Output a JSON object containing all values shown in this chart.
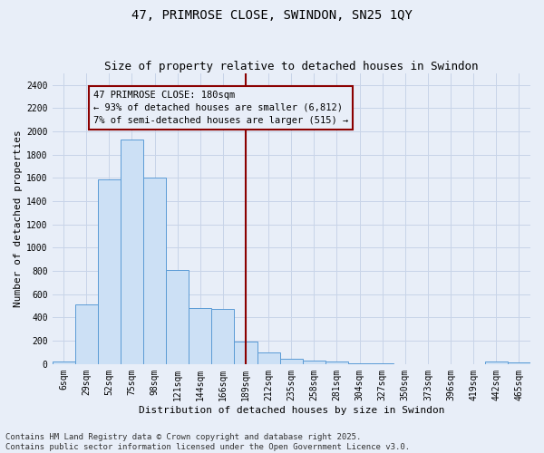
{
  "title": "47, PRIMROSE CLOSE, SWINDON, SN25 1QY",
  "subtitle": "Size of property relative to detached houses in Swindon",
  "xlabel": "Distribution of detached houses by size in Swindon",
  "ylabel": "Number of detached properties",
  "categories": [
    "6sqm",
    "29sqm",
    "52sqm",
    "75sqm",
    "98sqm",
    "121sqm",
    "144sqm",
    "166sqm",
    "189sqm",
    "212sqm",
    "235sqm",
    "258sqm",
    "281sqm",
    "304sqm",
    "327sqm",
    "350sqm",
    "373sqm",
    "396sqm",
    "419sqm",
    "442sqm",
    "465sqm"
  ],
  "values": [
    25,
    510,
    1590,
    1930,
    1600,
    810,
    480,
    470,
    195,
    100,
    45,
    30,
    20,
    10,
    5,
    0,
    0,
    0,
    0,
    20,
    15
  ],
  "bar_color": "#cce0f5",
  "bar_edge_color": "#5b9bd5",
  "vline_color": "#8b0000",
  "vline_index": 8.0,
  "annotation_title": "47 PRIMROSE CLOSE: 180sqm",
  "annotation_line1": "← 93% of detached houses are smaller (6,812)",
  "annotation_line2": "7% of semi-detached houses are larger (515) →",
  "ylim": [
    0,
    2500
  ],
  "yticks": [
    0,
    200,
    400,
    600,
    800,
    1000,
    1200,
    1400,
    1600,
    1800,
    2000,
    2200,
    2400
  ],
  "footer_line1": "Contains HM Land Registry data © Crown copyright and database right 2025.",
  "footer_line2": "Contains public sector information licensed under the Open Government Licence v3.0.",
  "bg_color": "#e8eef8",
  "grid_color": "#c8d4e8",
  "title_fontsize": 10,
  "subtitle_fontsize": 9,
  "axis_label_fontsize": 8,
  "tick_fontsize": 7,
  "annotation_fontsize": 7.5,
  "footer_fontsize": 6.5
}
